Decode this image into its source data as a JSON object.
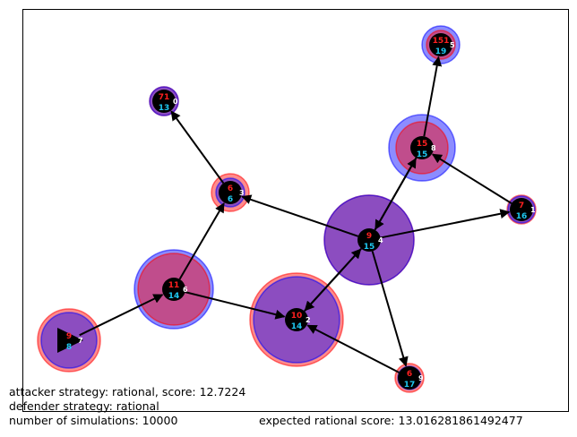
{
  "graph": {
    "edges": [
      {
        "from": 7,
        "to": 6
      },
      {
        "from": 6,
        "to": 3
      },
      {
        "from": 6,
        "to": 2
      },
      {
        "from": 3,
        "to": 0
      },
      {
        "from": 4,
        "to": 3
      },
      {
        "from": 4,
        "to": 1
      },
      {
        "from": 4,
        "to": 2
      },
      {
        "from": 2,
        "to": 4
      },
      {
        "from": 4,
        "to": 8
      },
      {
        "from": 8,
        "to": 4
      },
      {
        "from": 4,
        "to": 9
      },
      {
        "from": 9,
        "to": 2
      },
      {
        "from": 1,
        "to": 8
      },
      {
        "from": 8,
        "to": 5
      }
    ],
    "nodes": [
      {
        "id": "0",
        "attacker_value": "71",
        "defender_value": "13",
        "attacker_ring": 0.16,
        "defender_ring": 0.16,
        "shape": "circle"
      },
      {
        "id": "1",
        "attacker_value": "7",
        "defender_value": "16",
        "attacker_ring": 0.16,
        "defender_ring": 0.15,
        "shape": "circle"
      },
      {
        "id": "2",
        "attacker_value": "10",
        "defender_value": "14",
        "attacker_ring": 0.52,
        "defender_ring": 0.48,
        "shape": "circle"
      },
      {
        "id": "3",
        "attacker_value": "6",
        "defender_value": "6",
        "attacker_ring": 0.21,
        "defender_ring": 0.16,
        "shape": "circle"
      },
      {
        "id": "4",
        "attacker_value": "9",
        "defender_value": "15",
        "attacker_ring": 0.5,
        "defender_ring": 0.5,
        "shape": "circle"
      },
      {
        "id": "5",
        "attacker_value": "151",
        "defender_value": "19",
        "attacker_ring": 0.16,
        "defender_ring": 0.21,
        "shape": "circle"
      },
      {
        "id": "6",
        "attacker_value": "11",
        "defender_value": "14",
        "attacker_ring": 0.4,
        "defender_ring": 0.44,
        "shape": "circle"
      },
      {
        "id": "7",
        "attacker_value": "9",
        "defender_value": "8",
        "attacker_ring": 0.35,
        "defender_ring": 0.31,
        "shape": "triangle"
      },
      {
        "id": "8",
        "attacker_value": "15",
        "defender_value": "15",
        "attacker_ring": 0.29,
        "defender_ring": 0.37,
        "shape": "circle"
      },
      {
        "id": "9",
        "attacker_value": "6",
        "defender_value": "17",
        "attacker_ring": 0.16,
        "defender_ring": 0.13,
        "shape": "circle"
      }
    ],
    "colors": {
      "attacker": "#ff0000",
      "defender": "#0000ff",
      "defender_text": "#1ec8f0",
      "attacker_text": "#ff2020",
      "node_fill": "#000000",
      "id_text": "#ffffff"
    }
  },
  "captions": {
    "attacker_strategy": "attacker strategy: rational, score: 12.7224",
    "defender_strategy": "defender strategy: rational",
    "simulations": "number of simulations: 10000",
    "expected_score": "expected rational score: 13.016281861492477"
  }
}
